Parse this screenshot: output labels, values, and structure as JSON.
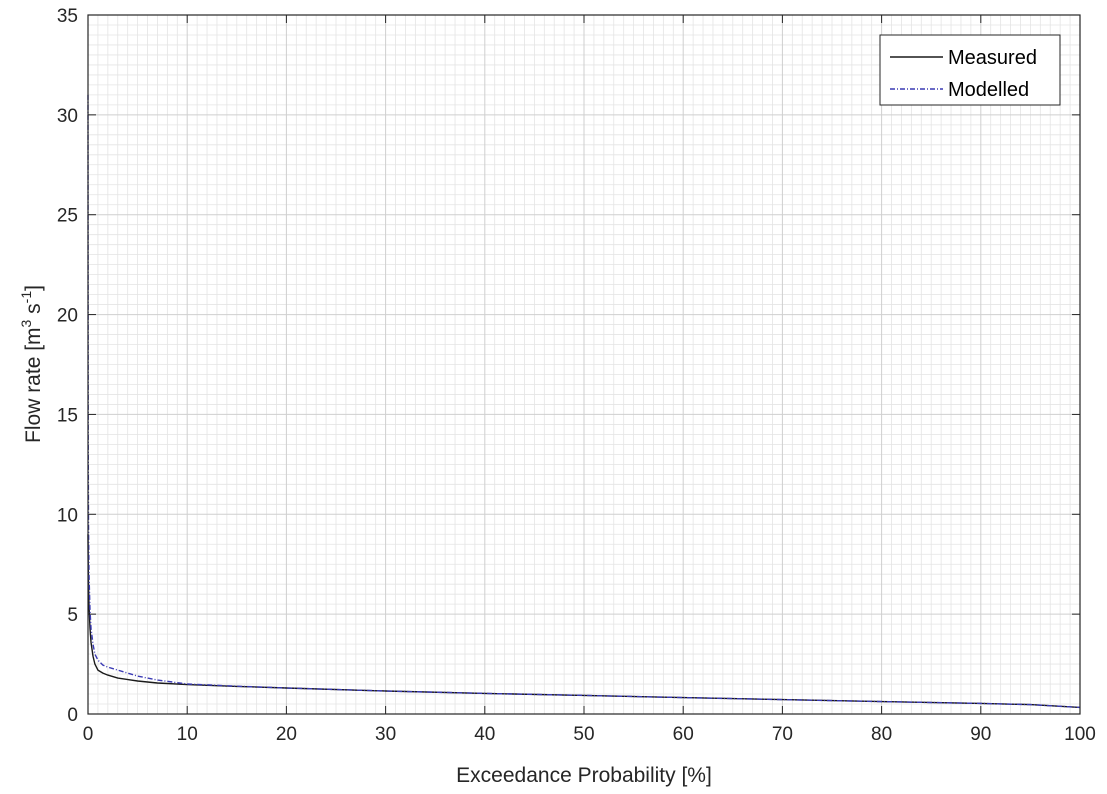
{
  "chart_data": {
    "type": "line",
    "title": "",
    "xlabel": "Exceedance Probability [%]",
    "ylabel": {
      "prefix": "Flow rate [m",
      "exp1": "3",
      "mid": " s",
      "exp2": "-1",
      "suffix": "]"
    },
    "xlim": [
      0,
      100
    ],
    "ylim": [
      0,
      35
    ],
    "xticks": [
      "0",
      "10",
      "20",
      "30",
      "40",
      "50",
      "60",
      "70",
      "80",
      "90",
      "100"
    ],
    "yticks": [
      "0",
      "5",
      "10",
      "15",
      "20",
      "25",
      "30",
      "35"
    ],
    "grid": true,
    "minor_grid": true,
    "legend_position": "top-right",
    "series": [
      {
        "name": "Measured",
        "color": "#1a1a1a",
        "style": "solid",
        "x": [
          0,
          0.02,
          0.05,
          0.1,
          0.2,
          0.3,
          0.5,
          0.7,
          1.0,
          1.5,
          2,
          3,
          5,
          7,
          10,
          15,
          20,
          30,
          40,
          50,
          60,
          70,
          80,
          90,
          95,
          100
        ],
        "y": [
          9.0,
          7.6,
          6.5,
          5.4,
          4.3,
          3.6,
          2.9,
          2.5,
          2.2,
          2.05,
          1.95,
          1.8,
          1.65,
          1.55,
          1.47,
          1.38,
          1.3,
          1.15,
          1.03,
          0.93,
          0.82,
          0.72,
          0.62,
          0.53,
          0.47,
          0.33
        ]
      },
      {
        "name": "Modelled",
        "color": "#3a3ab4",
        "style": "dashdot",
        "x": [
          0,
          0.02,
          0.05,
          0.1,
          0.2,
          0.3,
          0.5,
          0.7,
          1.0,
          1.5,
          2,
          3,
          5,
          7,
          10,
          15,
          20,
          30,
          40,
          50,
          60,
          70,
          80,
          90,
          95,
          100
        ],
        "y": [
          31.0,
          14.0,
          9.5,
          7.0,
          5.2,
          4.3,
          3.5,
          3.0,
          2.7,
          2.45,
          2.35,
          2.2,
          1.9,
          1.7,
          1.5,
          1.39,
          1.3,
          1.15,
          1.03,
          0.93,
          0.82,
          0.72,
          0.62,
          0.53,
          0.47,
          0.33
        ]
      }
    ]
  }
}
